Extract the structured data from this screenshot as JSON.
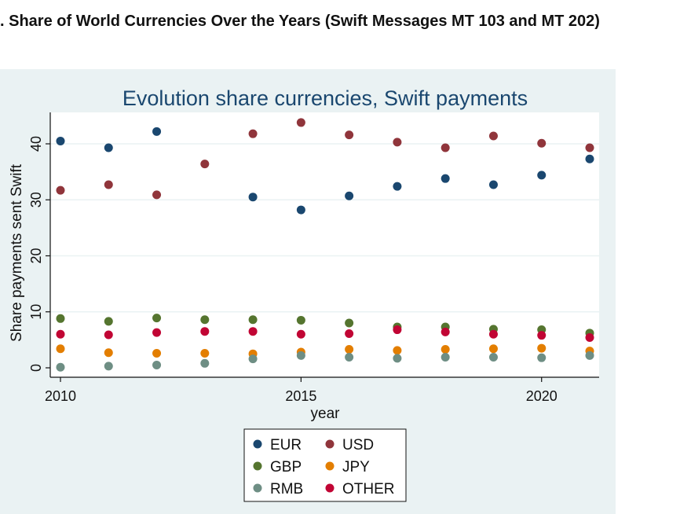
{
  "page": {
    "heading": ". Share of World Currencies Over the Years (Swift Messages MT 103 and MT 202)"
  },
  "chart_data": {
    "type": "scatter",
    "title": "Evolution share currencies, Swift payments",
    "xlabel": "year",
    "ylabel": "Share payments sent Swift",
    "xlim": [
      2010,
      2021
    ],
    "ylim": [
      0,
      45
    ],
    "xticks": [
      "2010",
      "2015",
      "2020"
    ],
    "xtick_values": [
      2010,
      2015,
      2020
    ],
    "yticks": [
      "0",
      "10",
      "20",
      "30",
      "40"
    ],
    "ytick_values": [
      0,
      10,
      20,
      30,
      40
    ],
    "grid": true,
    "legend_position": "bottom",
    "x": [
      2010,
      2011,
      2012,
      2013,
      2014,
      2015,
      2016,
      2017,
      2018,
      2019,
      2020,
      2021
    ],
    "series": [
      {
        "name": "EUR",
        "color": "#1a476f",
        "values": [
          40.5,
          39.3,
          42.2,
          null,
          30.5,
          28.2,
          30.7,
          32.4,
          33.8,
          32.7,
          34.4,
          37.3
        ]
      },
      {
        "name": "USD",
        "color": "#90353b",
        "values": [
          31.7,
          32.7,
          30.9,
          36.4,
          41.8,
          43.8,
          41.6,
          40.3,
          39.3,
          41.4,
          40.1,
          39.3
        ]
      },
      {
        "name": "GBP",
        "color": "#55752f",
        "values": [
          8.8,
          8.3,
          8.9,
          8.6,
          8.6,
          8.5,
          8.0,
          7.3,
          7.3,
          6.9,
          6.8,
          6.2
        ]
      },
      {
        "name": "JPY",
        "color": "#e37e00",
        "values": [
          3.4,
          2.7,
          2.6,
          2.6,
          2.5,
          2.8,
          3.3,
          3.1,
          3.3,
          3.4,
          3.5,
          3.0
        ]
      },
      {
        "name": "RMB",
        "color": "#6e8e84",
        "values": [
          0.1,
          0.3,
          0.5,
          0.8,
          1.6,
          2.2,
          1.9,
          1.7,
          1.9,
          1.9,
          1.8,
          2.2
        ]
      },
      {
        "name": "OTHER",
        "color": "#c10534",
        "values": [
          6.0,
          5.9,
          6.3,
          6.5,
          6.5,
          6.0,
          6.1,
          6.8,
          6.4,
          6.0,
          5.8,
          5.4
        ]
      }
    ]
  }
}
